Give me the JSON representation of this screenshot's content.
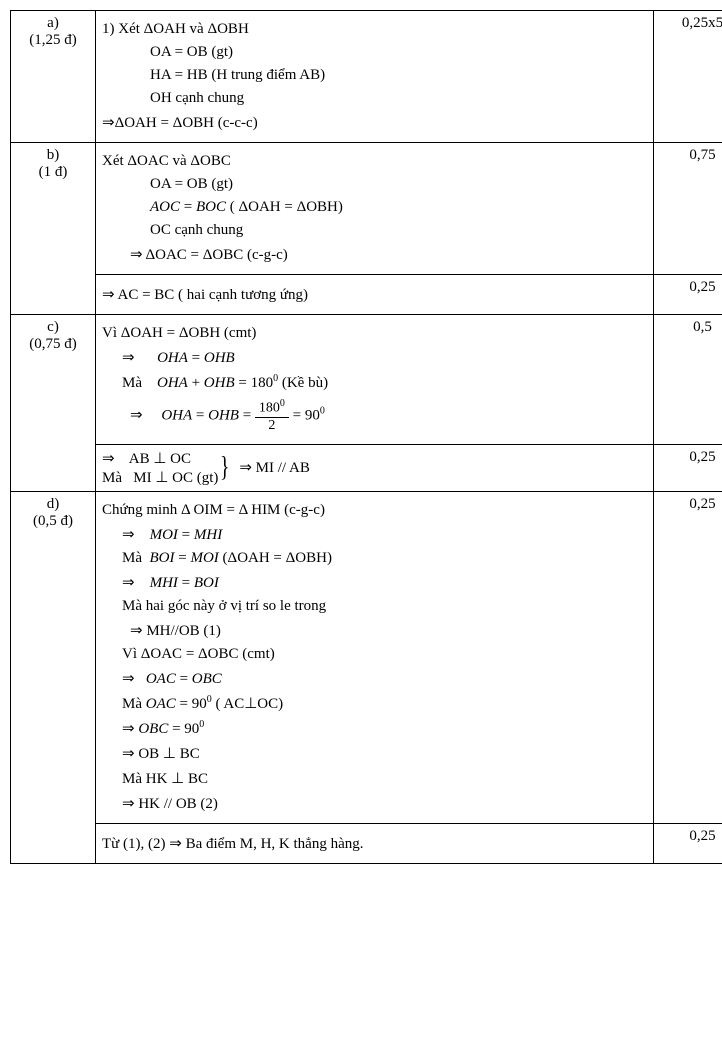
{
  "rows": [
    {
      "label": "a)\n(1,25 đ)",
      "content_lines": [
        {
          "text": "1)  Xét ΔOAH và ΔOBH",
          "class": ""
        },
        {
          "text": "OA = OB (gt)",
          "class": "indent1"
        },
        {
          "text": "HA = HB (H trung điểm AB)",
          "class": "indent1"
        },
        {
          "text": "OH cạnh chung",
          "class": "indent1"
        },
        {
          "text": "⇒ΔOAH =  ΔOBH (c-c-c)",
          "class": ""
        }
      ],
      "score": "0,25x5"
    },
    {
      "label": "b)\n(1 đ)",
      "subrows": [
        {
          "content_lines": [
            {
              "text": "Xét ΔOAC và ΔOBC",
              "class": ""
            },
            {
              "text": "OA = OB (gt)",
              "class": "indent1"
            },
            {
              "html": "<span class='ital'>AOC</span> = <span class='ital'>BOC</span> ( ΔOAH =  ΔOBH)",
              "class": "indent1"
            },
            {
              "text": "OC cạnh chung",
              "class": "indent1"
            },
            {
              "text": "⇒ ΔOAC = ΔOBC (c-g-c)",
              "class": "indent2"
            }
          ],
          "score": "0,75"
        },
        {
          "content_lines": [
            {
              "text": "⇒ AC = BC  ( hai cạnh tương ứng)",
              "class": ""
            }
          ],
          "score": "0,25",
          "dashed": true
        }
      ]
    },
    {
      "label": "c)\n(0,75 đ)",
      "subrows": [
        {
          "content_lines": [
            {
              "text": "Vì ΔOAH =  ΔOBH (cmt)",
              "class": ""
            },
            {
              "html": "⇒ &nbsp;&nbsp;&nbsp;&nbsp; <span class='ital'>OHA</span> = <span class='ital'>OHB</span>",
              "class": "indent3"
            },
            {
              "html": "Mà &nbsp;&nbsp; <span class='ital'>OHA</span> + <span class='ital'>OHB</span> = 180<sup>0</sup> (Kề bù)",
              "class": "indent3"
            },
            {
              "html": "⇒ &nbsp;&nbsp;&nbsp; <span class='ital'>OHA</span> = <span class='ital'>OHB</span> = <span class='frac'><span class='num'>180<sup>0</sup></span><span class='den'>2</span></span> = 90<sup>0</sup>",
              "class": "indent2"
            }
          ],
          "score": "0,5"
        },
        {
          "content_html": "<div style='display:flex;align-items:center;'><div>⇒ &nbsp;&nbsp; AB ⊥ OC<br>Mà&nbsp;&nbsp; MI ⊥ OC (gt)</div><div class='brace'>}</div><div>&nbsp; ⇒ MI // AB</div></div>",
          "score": "0,25",
          "dashed": true
        }
      ]
    },
    {
      "label": "d)\n(0,5 đ)",
      "subrows": [
        {
          "content_lines": [
            {
              "text": "Chứng minh Δ OIM = Δ HIM (c-g-c)",
              "class": ""
            },
            {
              "html": "⇒ &nbsp;&nbsp; <span class='ital'>MOI</span> = <span class='ital'>MHI</span>",
              "class": "indent3"
            },
            {
              "html": "Mà &nbsp;<span class='ital'>BOI</span> = <span class='ital'>MOI</span> (ΔOAH =  ΔOBH)",
              "class": "indent3"
            },
            {
              "html": "⇒ &nbsp;&nbsp; <span class='ital'>MHI</span> = <span class='ital'>BOI</span>",
              "class": "indent3"
            },
            {
              "text": "Mà hai góc này ở vị trí so le trong",
              "class": "indent3"
            },
            {
              "text": "⇒      MH//OB   (1)",
              "class": "indent2"
            },
            {
              "text": "Vì ΔOAC = ΔOBC (cmt)",
              "class": "indent3"
            },
            {
              "html": "⇒ &nbsp;&nbsp;<span class='ital'>OAC</span> = <span class='ital'>OBC</span>",
              "class": "indent3"
            },
            {
              "html": "Mà <span class='ital'>OAC</span> = 90<sup>0</sup> ( AC⊥OC)",
              "class": "indent3"
            },
            {
              "html": "⇒ <span class='ital'>OBC</span> = 90<sup>0</sup>",
              "class": "indent3"
            },
            {
              "text": "⇒ OB ⊥ BC",
              "class": "indent3"
            },
            {
              "text": "Mà  HK ⊥ BC",
              "class": "indent3"
            },
            {
              "text": "⇒    HK // OB (2)",
              "class": "indent3"
            }
          ],
          "score": "0,25",
          "score_valign": "top"
        },
        {
          "content_lines": [
            {
              "text": "Từ (1), (2) ⇒  Ba điểm M, H, K  thẳng hàng.",
              "class": ""
            }
          ],
          "score": "0,25",
          "no_border": true
        }
      ]
    }
  ]
}
